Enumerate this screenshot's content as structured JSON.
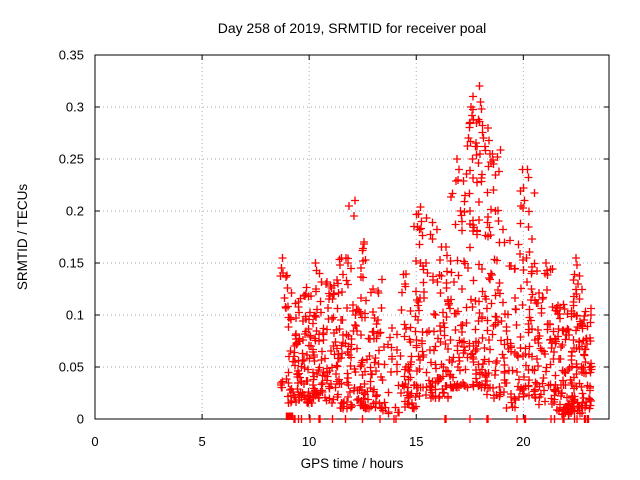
{
  "chart_data": {
    "type": "scatter",
    "title": "Day 258 of 2019, SRMTID for receiver poal",
    "xlabel": "GPS time / hours",
    "ylabel": "SRMTID / TECUs",
    "xlim": [
      0,
      24
    ],
    "ylim": [
      0,
      0.35
    ],
    "xticks": [
      0,
      5,
      10,
      15,
      20
    ],
    "xtick_labels": [
      "0",
      "5",
      "10",
      "15",
      "20"
    ],
    "yticks": [
      0,
      0.05,
      0.1,
      0.15,
      0.2,
      0.25,
      0.3,
      0.35
    ],
    "ytick_labels": [
      "0",
      "0.05",
      "0.1",
      "0.15",
      "0.2",
      "0.25",
      "0.3",
      "0.35"
    ],
    "grid": true,
    "grid_style": "dotted",
    "legend": "none",
    "marker": {
      "shape": "plus",
      "color": "#ff0000",
      "size": 8
    },
    "grid_color": "#a8a8a8",
    "border_color": "#000000",
    "background_color": "#ffffff",
    "data_x_range": [
      8.6,
      23.2
    ],
    "data_y_max": 0.32,
    "seed": 20190258,
    "clusters": [
      {
        "x0": 8.65,
        "x1": 9.0,
        "n": 14,
        "ymin": 0.03,
        "ymax": 0.155,
        "bias": 1.4
      },
      {
        "x0": 9.0,
        "x1": 9.6,
        "n": 55,
        "ymin": 0.015,
        "ymax": 0.125,
        "bias": 1.5
      },
      {
        "x0": 9.6,
        "x1": 10.2,
        "n": 55,
        "ymin": 0.015,
        "ymax": 0.135,
        "bias": 1.5
      },
      {
        "x0": 10.2,
        "x1": 10.8,
        "n": 50,
        "ymin": 0.02,
        "ymax": 0.15,
        "bias": 1.6
      },
      {
        "x0": 10.8,
        "x1": 11.4,
        "n": 50,
        "ymin": 0.015,
        "ymax": 0.135,
        "bias": 1.5
      },
      {
        "x0": 11.4,
        "x1": 12.0,
        "n": 50,
        "ymin": 0.01,
        "ymax": 0.16,
        "bias": 1.6
      },
      {
        "x0": 12.0,
        "x1": 12.7,
        "n": 55,
        "ymin": 0.01,
        "ymax": 0.17,
        "bias": 1.7
      },
      {
        "x0": 12.7,
        "x1": 13.4,
        "n": 48,
        "ymin": 0.01,
        "ymax": 0.14,
        "bias": 1.6
      },
      {
        "x0": 13.4,
        "x1": 14.3,
        "n": 26,
        "ymin": 0.005,
        "ymax": 0.095,
        "bias": 1.3
      },
      {
        "x0": 14.3,
        "x1": 15.0,
        "n": 50,
        "ymin": 0.01,
        "ymax": 0.16,
        "bias": 1.6
      },
      {
        "x0": 15.0,
        "x1": 15.8,
        "n": 62,
        "ymin": 0.02,
        "ymax": 0.2,
        "bias": 1.7
      },
      {
        "x0": 15.8,
        "x1": 16.6,
        "n": 62,
        "ymin": 0.02,
        "ymax": 0.19,
        "bias": 1.6
      },
      {
        "x0": 16.6,
        "x1": 17.3,
        "n": 60,
        "ymin": 0.03,
        "ymax": 0.24,
        "bias": 1.6
      },
      {
        "x0": 17.3,
        "x1": 18.3,
        "n": 95,
        "ymin": 0.03,
        "ymax": 0.3,
        "bias": 1.5,
        "cols": 7
      },
      {
        "x0": 18.3,
        "x1": 19.0,
        "n": 60,
        "ymin": 0.02,
        "ymax": 0.26,
        "bias": 1.7
      },
      {
        "x0": 19.0,
        "x1": 19.8,
        "n": 50,
        "ymin": 0.01,
        "ymax": 0.185,
        "bias": 1.6
      },
      {
        "x0": 19.8,
        "x1": 20.6,
        "n": 62,
        "ymin": 0.02,
        "ymax": 0.22,
        "bias": 1.6,
        "cols": 6
      },
      {
        "x0": 20.6,
        "x1": 21.4,
        "n": 50,
        "ymin": 0.01,
        "ymax": 0.145,
        "bias": 1.5
      },
      {
        "x0": 21.4,
        "x1": 22.3,
        "n": 95,
        "ymin": 0.004,
        "ymax": 0.115,
        "bias": 1.4
      },
      {
        "x0": 22.3,
        "x1": 22.8,
        "n": 55,
        "ymin": 0.005,
        "ymax": 0.14,
        "bias": 1.4,
        "cols": 4
      },
      {
        "x0": 22.8,
        "x1": 23.2,
        "n": 40,
        "ymin": 0.01,
        "ymax": 0.115,
        "bias": 1.3
      }
    ],
    "outliers": [
      [
        8.7,
        0.145
      ],
      [
        8.75,
        0.155
      ],
      [
        10.3,
        0.15
      ],
      [
        10.35,
        0.143
      ],
      [
        11.45,
        0.148
      ],
      [
        11.5,
        0.155
      ],
      [
        11.85,
        0.205
      ],
      [
        12.1,
        0.195
      ],
      [
        12.15,
        0.21
      ],
      [
        12.5,
        0.162
      ],
      [
        12.55,
        0.17
      ],
      [
        14.9,
        0.185
      ],
      [
        15.15,
        0.182
      ],
      [
        15.2,
        0.204
      ],
      [
        15.25,
        0.19
      ],
      [
        16.9,
        0.25
      ],
      [
        16.95,
        0.23
      ],
      [
        17.0,
        0.24
      ],
      [
        17.45,
        0.27
      ],
      [
        17.5,
        0.285
      ],
      [
        17.55,
        0.3
      ],
      [
        17.6,
        0.292
      ],
      [
        17.65,
        0.31
      ],
      [
        17.9,
        0.288
      ],
      [
        17.95,
        0.32
      ],
      [
        18.0,
        0.305
      ],
      [
        18.05,
        0.298
      ],
      [
        18.1,
        0.282
      ],
      [
        18.15,
        0.27
      ],
      [
        18.2,
        0.262
      ],
      [
        18.35,
        0.28
      ],
      [
        18.4,
        0.268
      ],
      [
        18.45,
        0.255
      ],
      [
        18.5,
        0.247
      ],
      [
        18.6,
        0.22
      ],
      [
        18.7,
        0.2
      ],
      [
        19.9,
        0.205
      ],
      [
        19.95,
        0.24
      ],
      [
        20.0,
        0.222
      ],
      [
        20.05,
        0.21
      ],
      [
        20.2,
        0.24
      ],
      [
        20.25,
        0.232
      ],
      [
        21.05,
        0.15
      ],
      [
        21.1,
        0.143
      ],
      [
        22.4,
        0.139
      ],
      [
        22.45,
        0.155
      ],
      [
        22.5,
        0.148
      ],
      [
        22.55,
        0.13
      ]
    ],
    "zero_line_xs": [
      9.3,
      9.35,
      9.5,
      9.65,
      10.05,
      10.45,
      10.5,
      11.1,
      11.7,
      12.5,
      13.3,
      13.95,
      14.05,
      16.35,
      16.4,
      17.5,
      18.3,
      18.35,
      19.7,
      20.05,
      20.1,
      21.3,
      21.45,
      21.85,
      21.9,
      22.4,
      22.5,
      22.85,
      22.9,
      23.0,
      23.05
    ],
    "zero_blob_x": 9.07
  }
}
